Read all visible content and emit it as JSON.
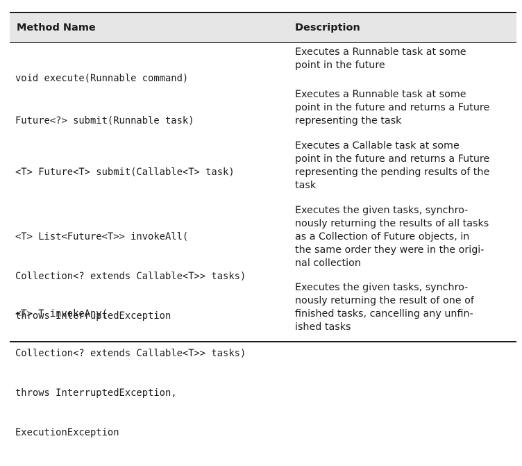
{
  "table": {
    "headers": [
      "Method Name",
      "Description"
    ],
    "rows": [
      {
        "method": [
          "void execute(Runnable command)"
        ],
        "description": [
          "Executes a Runnable task at some",
          "point in the future"
        ]
      },
      {
        "method": [
          "Future<?> submit(Runnable task)"
        ],
        "description": [
          "Executes a Runnable task at some",
          "point in the future and returns a Future",
          "representing the task"
        ]
      },
      {
        "method": [
          "<T> Future<T> submit(Callable<T> task)"
        ],
        "description": [
          "Executes a Callable task at some",
          "point in the future and returns a Future",
          "representing the pending results of the",
          "task"
        ]
      },
      {
        "method": [
          "<T> List<Future<T>> invokeAll(",
          "Collection<? extends Callable<T>> tasks)",
          "throws InterruptedException"
        ],
        "description": [
          "Executes the given tasks, synchro-",
          "nously returning the results of all tasks",
          "as a Collection of Future objects, in",
          "the same order they were in the origi-",
          "nal collection"
        ]
      },
      {
        "method": [
          "<T> T invokeAny(",
          "Collection<? extends Callable<T>> tasks)",
          "throws InterruptedException,",
          "ExecutionException"
        ],
        "description": [
          "Executes the given tasks, synchro-",
          "nously returning the result of one of",
          "finished tasks, cancelling any unfin-",
          "ished tasks"
        ]
      }
    ]
  }
}
